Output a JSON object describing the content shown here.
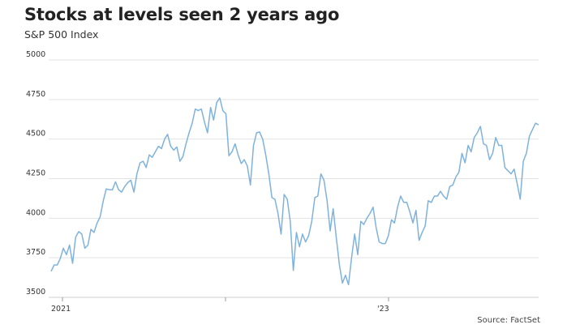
{
  "title": "Stocks at levels seen 2 years ago",
  "subtitle": "S&P 500 Index",
  "source": "Source: FactSet",
  "chart_data": {
    "type": "line",
    "title": "Stocks at levels seen 2 years ago",
    "subtitle": "S&P 500 Index",
    "xlabel": "",
    "ylabel": "",
    "x_ticks": [
      {
        "year": 2021,
        "label": "2021"
      },
      {
        "year": 2022,
        "label": ""
      },
      {
        "year": 2023,
        "label": "'23"
      }
    ],
    "y_ticks": [
      3500,
      3750,
      4000,
      4250,
      4500,
      4750,
      5000
    ],
    "ylim": [
      3500,
      5000
    ],
    "grid": true,
    "line_color": "#7fb2dc",
    "series": [
      {
        "values": [
          3665,
          3705,
          3705,
          3745,
          3810,
          3770,
          3830,
          3715,
          3880,
          3915,
          3900,
          3810,
          3830,
          3930,
          3910,
          3970,
          4010,
          4110,
          4185,
          4180,
          4180,
          4230,
          4180,
          4165,
          4200,
          4225,
          4240,
          4165,
          4280,
          4350,
          4360,
          4320,
          4400,
          4385,
          4420,
          4455,
          4440,
          4500,
          4530,
          4455,
          4430,
          4450,
          4360,
          4390,
          4470,
          4540,
          4600,
          4690,
          4680,
          4690,
          4610,
          4540,
          4700,
          4620,
          4730,
          4760,
          4680,
          4660,
          4395,
          4420,
          4470,
          4400,
          4345,
          4370,
          4330,
          4210,
          4460,
          4540,
          4545,
          4500,
          4400,
          4280,
          4130,
          4120,
          4030,
          3900,
          4150,
          4120,
          3980,
          3670,
          3910,
          3820,
          3900,
          3850,
          3890,
          3980,
          4130,
          4140,
          4280,
          4240,
          4110,
          3920,
          4060,
          3880,
          3710,
          3590,
          3640,
          3580,
          3750,
          3900,
          3770,
          3980,
          3960,
          4000,
          4030,
          4070,
          3940,
          3850,
          3840,
          3840,
          3890,
          3990,
          3970,
          4070,
          4140,
          4100,
          4100,
          4040,
          3970,
          4050,
          3860,
          3910,
          3950,
          4110,
          4100,
          4140,
          4140,
          4170,
          4140,
          4120,
          4200,
          4210,
          4260,
          4290,
          4410,
          4350,
          4460,
          4420,
          4510,
          4540,
          4580,
          4470,
          4460,
          4370,
          4410,
          4510,
          4460,
          4460,
          4320,
          4300,
          4280,
          4310,
          4220,
          4120,
          4360,
          4410,
          4520,
          4560,
          4600,
          4590
        ]
      }
    ]
  }
}
